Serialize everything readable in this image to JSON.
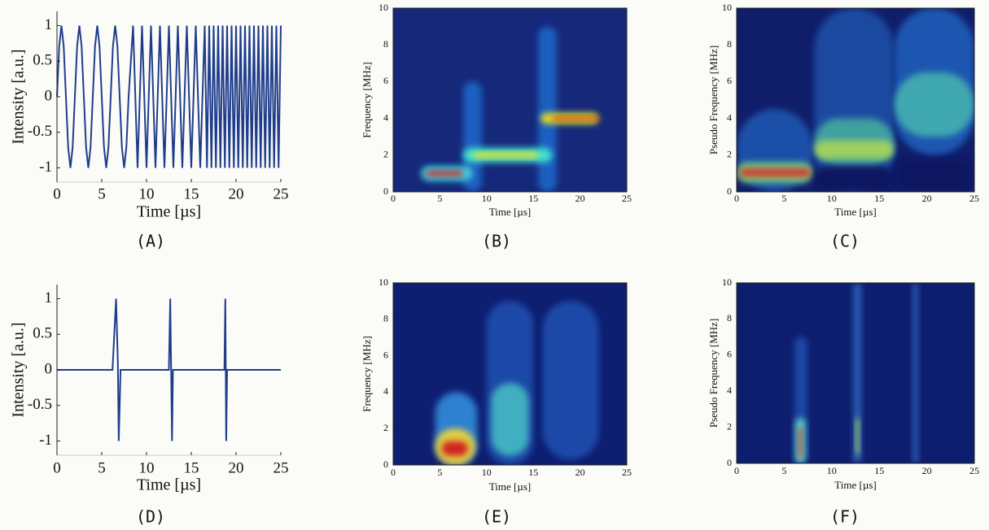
{
  "chart_data": [
    {
      "type": "line",
      "label": "(A)",
      "xlabel": "Time [µs]",
      "ylabel": "Intensity [a.u.]",
      "color": "#1f3d8c",
      "xlim": [
        0,
        25
      ],
      "ylim": [
        -1.2,
        1.2
      ],
      "xticks": [
        0,
        5,
        10,
        15,
        20,
        25
      ],
      "yticks": [
        -1,
        -0.5,
        0,
        0.5,
        1
      ],
      "x": [
        0,
        0.25,
        0.5,
        0.75,
        1,
        1.25,
        1.5,
        1.75,
        2,
        2.25,
        2.5,
        2.75,
        3,
        3.25,
        3.5,
        3.75,
        4,
        4.25,
        4.5,
        4.75,
        5,
        5.25,
        5.5,
        5.75,
        6,
        6.25,
        6.5,
        6.75,
        7,
        7.25,
        7.5,
        7.75,
        8,
        8.5,
        9,
        9.5,
        10,
        10.5,
        11,
        11.5,
        12,
        12.5,
        13,
        13.5,
        14,
        14.5,
        15,
        15.5,
        16,
        16.5,
        16.75,
        17,
        17.25,
        17.5,
        17.75,
        18,
        18.25,
        18.5,
        18.75,
        19,
        19.25,
        19.5,
        19.75,
        20,
        20.25,
        20.5,
        20.75,
        21,
        21.25,
        21.5,
        21.75,
        22,
        22.25,
        22.5,
        22.75,
        23,
        23.25,
        23.5,
        23.75,
        24,
        24.25,
        24.5,
        24.75,
        25
      ],
      "values": [
        0,
        0.71,
        1,
        0.71,
        0,
        -0.71,
        -1,
        -0.71,
        0,
        0.71,
        1,
        0.71,
        0,
        -0.71,
        -1,
        -0.71,
        0,
        0.71,
        1,
        0.71,
        0,
        -0.71,
        -1,
        -0.71,
        0,
        0.71,
        1,
        0.71,
        0,
        -0.71,
        -1,
        -0.71,
        0,
        1,
        -1,
        1,
        -1,
        1,
        -1,
        1,
        -1,
        1,
        -1,
        1,
        -1,
        1,
        -1,
        1,
        -1,
        1,
        -1,
        1,
        -1,
        1,
        -1,
        1,
        -1,
        1,
        -1,
        1,
        -1,
        1,
        -1,
        1,
        -1,
        1,
        -1,
        1,
        -1,
        1,
        -1,
        1,
        -1,
        1,
        -1,
        1,
        -1,
        1,
        -1,
        1,
        -1,
        1,
        -1,
        1
      ]
    },
    {
      "type": "spectrogram",
      "label": "(B)",
      "xlabel": "Time [µs]",
      "ylabel": "Frequency [MHz]",
      "background": "#15287a",
      "xlim": [
        0,
        25
      ],
      "ylim": [
        0,
        10
      ],
      "xticks": [
        0,
        5,
        10,
        15,
        20,
        25
      ],
      "yticks": [
        0,
        2,
        4,
        6,
        8,
        10
      ],
      "features": [
        {
          "x": [
            7.5,
            9.5
          ],
          "y": [
            0,
            6
          ],
          "color": "#1f5fc0"
        },
        {
          "x": [
            15.5,
            17.5
          ],
          "y": [
            0,
            9
          ],
          "color": "#1f5fc0"
        },
        {
          "x": [
            3,
            8.5
          ],
          "y": [
            0.6,
            1.4
          ],
          "color": "#3fd0e0"
        },
        {
          "x": [
            3.5,
            7.5
          ],
          "y": [
            0.85,
            1.15
          ],
          "color": "#d42020"
        },
        {
          "x": [
            7.5,
            17
          ],
          "y": [
            1.6,
            2.4
          ],
          "color": "#40e0d0"
        },
        {
          "x": [
            8.5,
            15.5
          ],
          "y": [
            1.85,
            2.15
          ],
          "color": "#e8e020"
        },
        {
          "x": [
            15.8,
            22
          ],
          "y": [
            3.7,
            4.3
          ],
          "color": "#e0e020"
        },
        {
          "x": [
            17,
            22
          ],
          "y": [
            3.9,
            4.1
          ],
          "color": "#d42020"
        }
      ]
    },
    {
      "type": "spectrogram",
      "label": "(C)",
      "xlabel": "Time [µs]",
      "ylabel": "Pseudo Frequency [MHz]",
      "background": "#101e6a",
      "xlim": [
        0,
        25
      ],
      "ylim": [
        0,
        10
      ],
      "xticks": [
        0,
        5,
        10,
        15,
        20,
        25
      ],
      "yticks": [
        0,
        2,
        4,
        6,
        8,
        10
      ],
      "features": [
        {
          "x": [
            0,
            8
          ],
          "y": [
            0,
            4.5
          ],
          "color": "#1e4fa8"
        },
        {
          "x": [
            0,
            8
          ],
          "y": [
            0.5,
            1.6
          ],
          "color": "#6fd080"
        },
        {
          "x": [
            0.3,
            7.8
          ],
          "y": [
            0.8,
            1.3
          ],
          "color": "#d04030"
        },
        {
          "x": [
            8.2,
            16.5
          ],
          "y": [
            0,
            10
          ],
          "color": "#1e4aa0"
        },
        {
          "x": [
            8.2,
            16.5
          ],
          "y": [
            1.4,
            4
          ],
          "color": "#3fa0a0"
        },
        {
          "x": [
            8.2,
            16.5
          ],
          "y": [
            1.8,
            2.8
          ],
          "color": "#9fd060"
        },
        {
          "x": [
            16.6,
            25
          ],
          "y": [
            2,
            10
          ],
          "color": "#1e56b0"
        },
        {
          "x": [
            16.6,
            25
          ],
          "y": [
            3,
            6.5
          ],
          "color": "#3fa8b0"
        },
        {
          "x": [
            8.2,
            16.5
          ],
          "y": [
            0,
            1.4
          ],
          "color": "#0a1560"
        },
        {
          "x": [
            16.6,
            25
          ],
          "y": [
            0,
            1.8
          ],
          "color": "#0a1560"
        }
      ]
    },
    {
      "type": "line",
      "label": "(D)",
      "xlabel": "Time [µs]",
      "ylabel": "Intensity [a.u.]",
      "color": "#1f3d8c",
      "xlim": [
        0,
        25
      ],
      "ylim": [
        -1.2,
        1.2
      ],
      "xticks": [
        0,
        5,
        10,
        15,
        20,
        25
      ],
      "yticks": [
        -1,
        -0.5,
        0,
        0.5,
        1
      ],
      "x": [
        0,
        6.2,
        6.6,
        6.8,
        6.9,
        7.1,
        12.5,
        12.65,
        12.75,
        12.85,
        12.95,
        18.7,
        18.8,
        18.85,
        18.9,
        19.0,
        25
      ],
      "values": [
        0,
        0,
        1,
        0.1,
        -1,
        0,
        0,
        1,
        0,
        -1,
        0,
        0,
        1,
        0,
        -1,
        0,
        0
      ]
    },
    {
      "type": "spectrogram",
      "label": "(E)",
      "xlabel": "Time [µs]",
      "ylabel": "Frequency [MHz]",
      "background": "#0e1e70",
      "xlim": [
        0,
        25
      ],
      "ylim": [
        0,
        10
      ],
      "xticks": [
        0,
        5,
        10,
        15,
        20,
        25
      ],
      "yticks": [
        0,
        2,
        4,
        6,
        8,
        10
      ],
      "features": [
        {
          "x": [
            16,
            22
          ],
          "y": [
            0.3,
            9
          ],
          "color": "#1e4aa8"
        },
        {
          "x": [
            10,
            15
          ],
          "y": [
            0,
            9
          ],
          "color": "#1e4aa8"
        },
        {
          "x": [
            10.5,
            14.5
          ],
          "y": [
            0.5,
            4.5
          ],
          "color": "#3fb0c0"
        },
        {
          "x": [
            4.5,
            9
          ],
          "y": [
            0,
            4
          ],
          "color": "#2f80d0"
        },
        {
          "x": [
            4.5,
            8.8
          ],
          "y": [
            0,
            2
          ],
          "color": "#e0d040"
        },
        {
          "x": [
            5.2,
            8
          ],
          "y": [
            0.5,
            1.3
          ],
          "color": "#d02020"
        }
      ]
    },
    {
      "type": "spectrogram",
      "label": "(F)",
      "xlabel": "Time [µs]",
      "ylabel": "Pseudo Frequency [MHz]",
      "background": "#0e1e6e",
      "xlim": [
        0,
        25
      ],
      "ylim": [
        0,
        10
      ],
      "xticks": [
        0,
        5,
        10,
        15,
        20,
        25
      ],
      "yticks": [
        0,
        2,
        4,
        6,
        8,
        10
      ],
      "features": [
        {
          "x": [
            6.1,
            7.4
          ],
          "y": [
            0,
            7
          ],
          "color": "#1e4aa8"
        },
        {
          "x": [
            6.2,
            7.2
          ],
          "y": [
            0,
            2.5
          ],
          "color": "#60d0c0"
        },
        {
          "x": [
            6.5,
            6.9
          ],
          "y": [
            0.3,
            2
          ],
          "color": "#d04030"
        },
        {
          "x": [
            12.3,
            13.1
          ],
          "y": [
            0,
            10
          ],
          "color": "#2a60b8"
        },
        {
          "x": [
            12.5,
            12.9
          ],
          "y": [
            0.5,
            2.5
          ],
          "color": "#a0d060"
        },
        {
          "x": [
            18.5,
            19.1
          ],
          "y": [
            0,
            10
          ],
          "color": "#2a5ab0"
        }
      ]
    }
  ]
}
